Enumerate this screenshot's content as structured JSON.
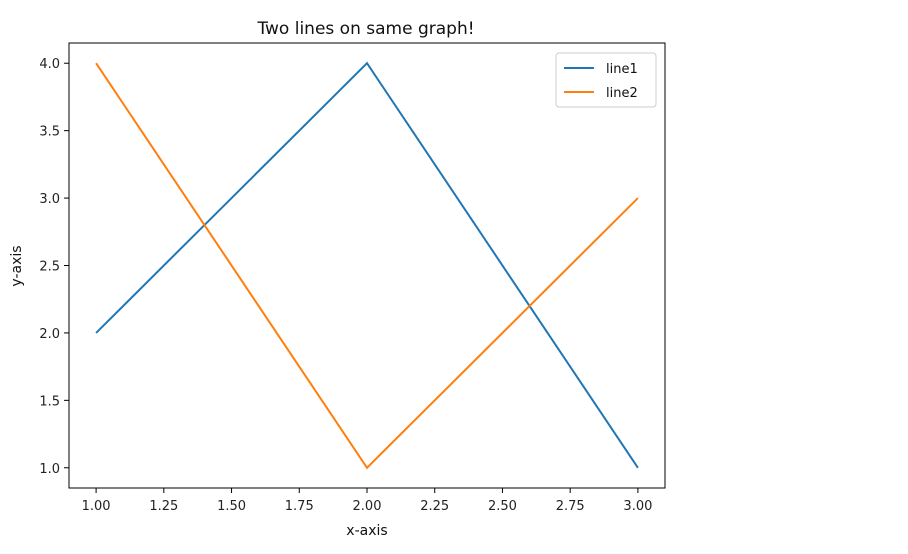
{
  "chart_data": {
    "type": "line",
    "title": "Two lines on same graph!",
    "xlabel": "x-axis",
    "ylabel": "y-axis",
    "xlim": [
      0.9,
      3.1
    ],
    "ylim": [
      0.85,
      4.15
    ],
    "xticks": [
      1.0,
      1.25,
      1.5,
      1.75,
      2.0,
      2.25,
      2.5,
      2.75,
      3.0
    ],
    "xtick_labels": [
      "1.00",
      "1.25",
      "1.50",
      "1.75",
      "2.00",
      "2.25",
      "2.50",
      "2.75",
      "3.00"
    ],
    "yticks": [
      1.0,
      1.5,
      2.0,
      2.5,
      3.0,
      3.5,
      4.0
    ],
    "ytick_labels": [
      "1.0",
      "1.5",
      "2.0",
      "2.5",
      "3.0",
      "3.5",
      "4.0"
    ],
    "grid": false,
    "legend_position": "top-right",
    "series": [
      {
        "name": "line1",
        "x": [
          1,
          2,
          3
        ],
        "y": [
          2,
          4,
          1
        ],
        "color": "#1f77b4"
      },
      {
        "name": "line2",
        "x": [
          1,
          2,
          3
        ],
        "y": [
          4,
          1,
          3
        ],
        "color": "#ff7f0e"
      }
    ]
  }
}
